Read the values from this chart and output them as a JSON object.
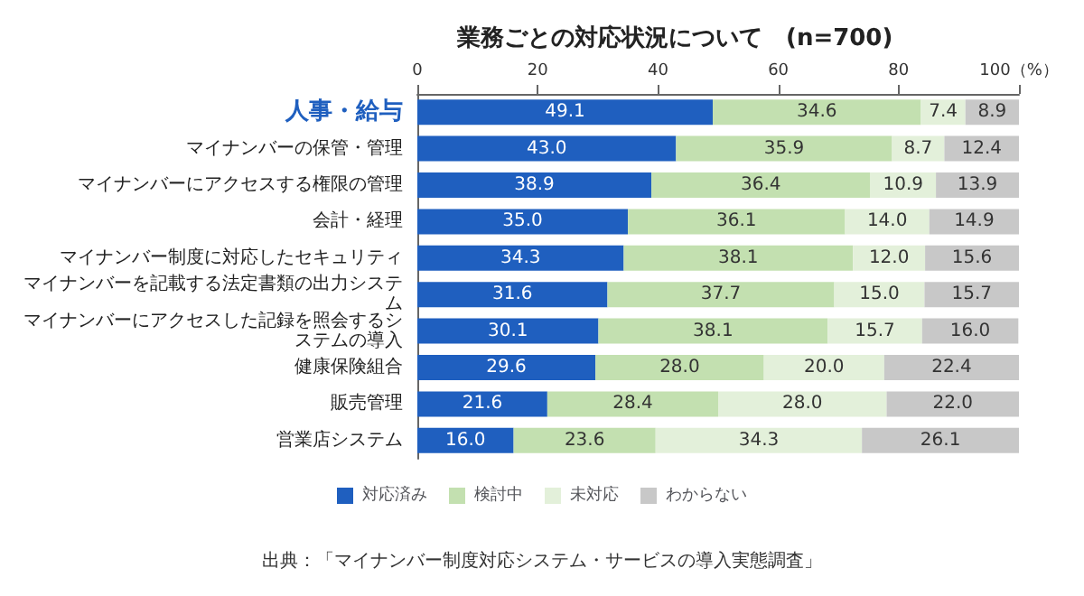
{
  "chart_data": {
    "type": "bar",
    "orientation": "horizontal",
    "stacked": true,
    "title": "業務ごとの対応状況について　(n=700)",
    "categories": [
      "人事・給与",
      "マイナンバーの保管・管理",
      "マイナンバーにアクセスする権限の管理",
      "会計・経理",
      "マイナンバー制度に対応したセキュリティ",
      "マイナンバーを記載する法定書類の出力システム",
      "マイナンバーにアクセスした記録を照会するシステムの導入",
      "健康保険組合",
      "販売管理",
      "営業店システム"
    ],
    "series": [
      {
        "name": "対応済み",
        "color": "#1f5fbf",
        "values": [
          49.1,
          43,
          38.9,
          35,
          34.3,
          31.6,
          30.1,
          29.6,
          21.6,
          16
        ],
        "value_labels": [
          "49.1",
          "43.0",
          "38.9",
          "35.0",
          "34.3",
          "31.6",
          "30.1",
          "29.6",
          "21.6",
          "16.0"
        ]
      },
      {
        "name": "検討中",
        "color": "#c3e0b0",
        "values": [
          34.6,
          35.9,
          36.4,
          36.1,
          38.1,
          37.7,
          38.1,
          28,
          28.4,
          23.6
        ],
        "value_labels": [
          "34.6",
          "35.9",
          "36.4",
          "36.1",
          "38.1",
          "37.7",
          "38.1",
          "28.0",
          "28.4",
          "23.6"
        ]
      },
      {
        "name": "未対応",
        "color": "#e3f0da",
        "values": [
          7.4,
          8.7,
          10.9,
          14,
          12,
          15,
          15.7,
          20,
          28,
          34.3
        ],
        "value_labels": [
          "7.4",
          "8.7",
          "10.9",
          "14.0",
          "12.0",
          "15.0",
          "15.7",
          "20.0",
          "28.0",
          "34.3"
        ]
      },
      {
        "name": "わからない",
        "color": "#c8c8c8",
        "values": [
          8.9,
          12.4,
          13.9,
          14.9,
          15.6,
          15.7,
          16,
          22.4,
          22,
          26.1
        ],
        "value_labels": [
          "8.9",
          "12.4",
          "13.9",
          "14.9",
          "15.6",
          "15.7",
          "16.0",
          "22.4",
          "22.0",
          "26.1"
        ]
      }
    ],
    "xlim": [
      0,
      100
    ],
    "xticks": [
      0,
      20,
      40,
      60,
      80,
      {
        "value": 100,
        "label": "100（%）"
      }
    ],
    "grid": false,
    "legend": "bottom",
    "annotations": [
      "出典：「マイナンバー制度対応システム・サービスの導入実態調査」"
    ]
  }
}
